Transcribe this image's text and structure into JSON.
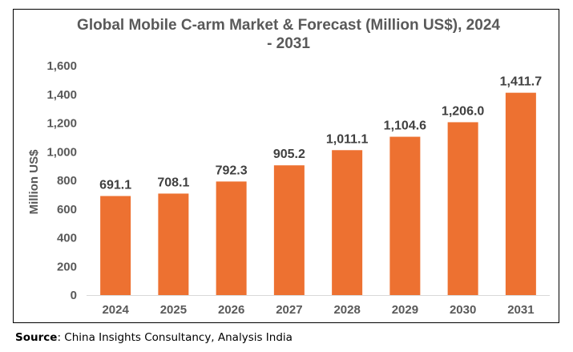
{
  "chart_data": {
    "type": "bar",
    "title": "Global Mobile C-arm Market & Forecast (Million US$), 2024 - 2031",
    "title_lines": [
      "Global Mobile C-arm Market & Forecast (Million US$), 2024",
      "- 2031"
    ],
    "xlabel": "",
    "ylabel": "Million US$",
    "categories": [
      "2024",
      "2025",
      "2026",
      "2027",
      "2028",
      "2029",
      "2030",
      "2031"
    ],
    "values": [
      691.1,
      708.1,
      792.3,
      905.2,
      1011.1,
      1104.6,
      1206.0,
      1411.7
    ],
    "data_labels": [
      "691.1",
      "708.1",
      "792.3",
      "905.2",
      "1,011.1",
      "1,104.6",
      "1,206.0",
      "1,411.7"
    ],
    "ylim": [
      0,
      1600
    ],
    "yticks": [
      0,
      200,
      400,
      600,
      800,
      1000,
      1200,
      1400,
      1600
    ],
    "ytick_labels": [
      "0",
      "200",
      "400",
      "600",
      "800",
      "1,000",
      "1,200",
      "1,400",
      "1,600"
    ],
    "grid": false,
    "legend": "none",
    "bar_color": "#ED7131"
  },
  "source": {
    "label": "Source",
    "text": ": China Insights Consultancy, Analysis India"
  }
}
